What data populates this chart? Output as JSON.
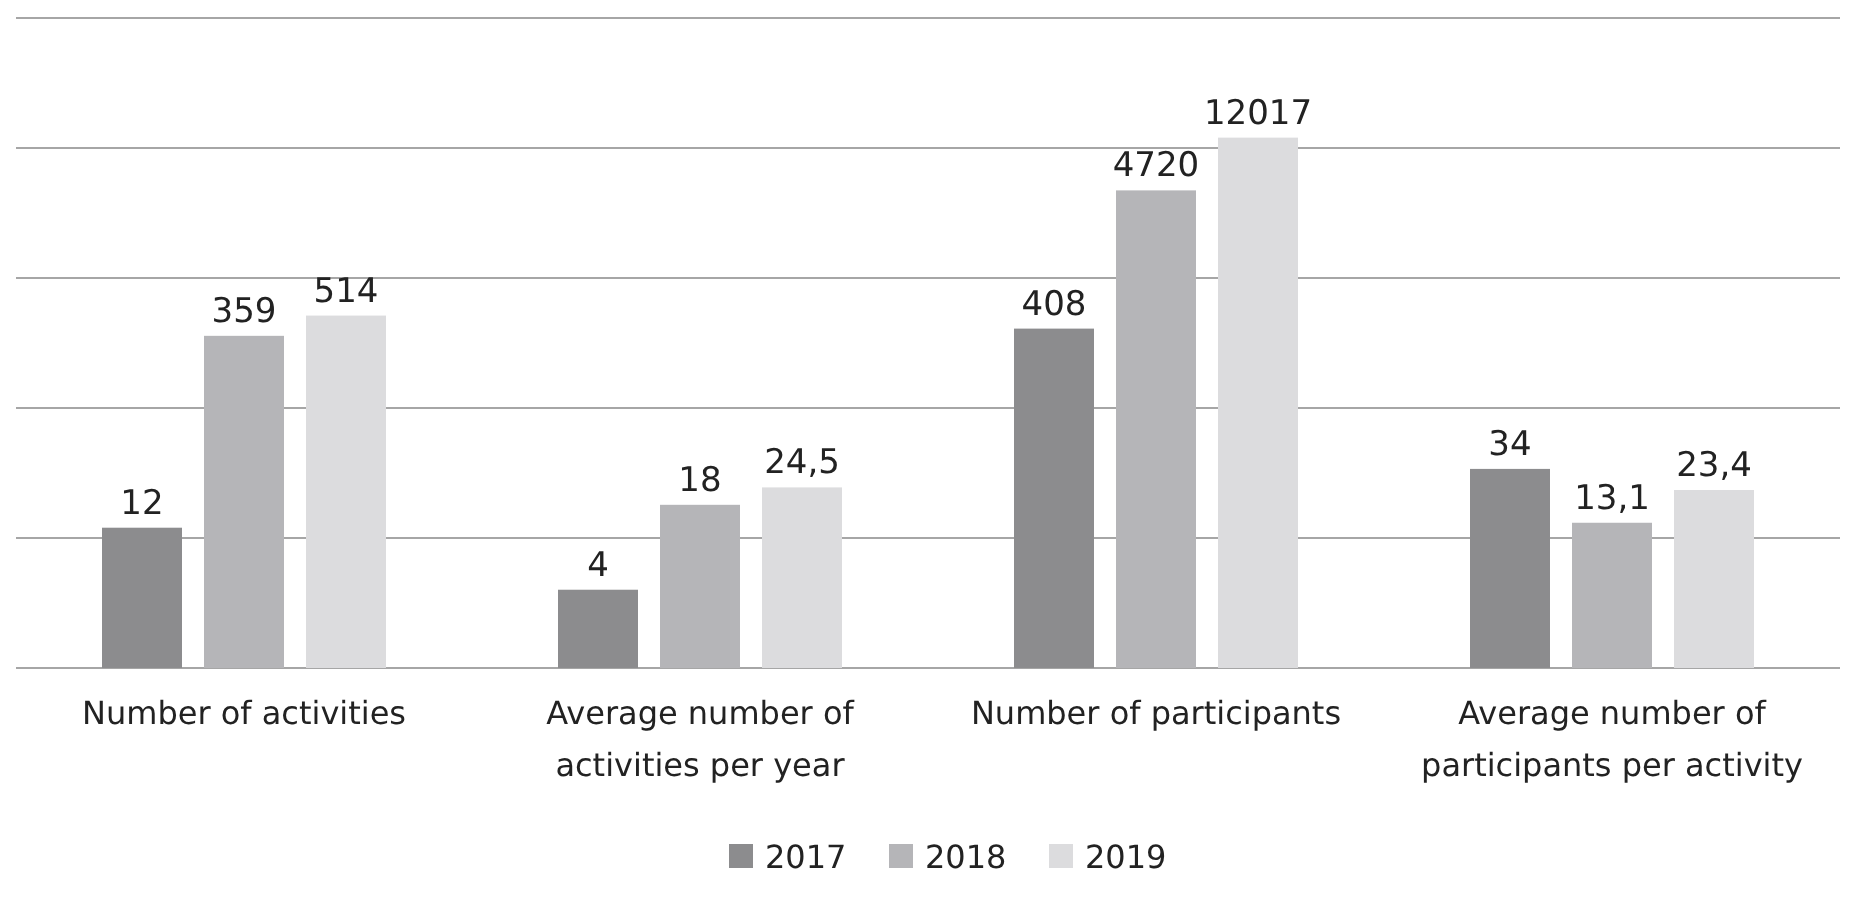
{
  "chart_data": {
    "type": "bar",
    "categories": [
      "Number of activities",
      "Average number of activities per year",
      "Number of participants",
      "Average number of participants per activity"
    ],
    "series": [
      {
        "name": "2017",
        "color": "#8c8c8e",
        "values": [
          12,
          4,
          408,
          34
        ],
        "value_labels": [
          "12",
          "4",
          "408",
          "34"
        ]
      },
      {
        "name": "2018",
        "color": "#b5b5b8",
        "values": [
          359,
          18,
          4720,
          13.1
        ],
        "value_labels": [
          "359",
          "18",
          "4720",
          "13,1"
        ]
      },
      {
        "name": "2019",
        "color": "#dcdcde",
        "values": [
          514,
          24.5,
          12017,
          23.4
        ],
        "value_labels": [
          "514",
          "24,5",
          "12017",
          "23,4"
        ]
      }
    ],
    "log": true,
    "ylim": [
      1,
      100000
    ],
    "yticks": [
      {
        "value": 1,
        "label": null
      },
      {
        "value": 10,
        "label": null
      },
      {
        "value": 100,
        "label": null
      },
      {
        "value": 1000,
        "label": null
      },
      {
        "value": 10000,
        "label": null
      },
      {
        "value": 100000,
        "label": null
      }
    ],
    "grid": "y",
    "tick_labels": "x",
    "legend": "bottom",
    "data_labels": true
  }
}
